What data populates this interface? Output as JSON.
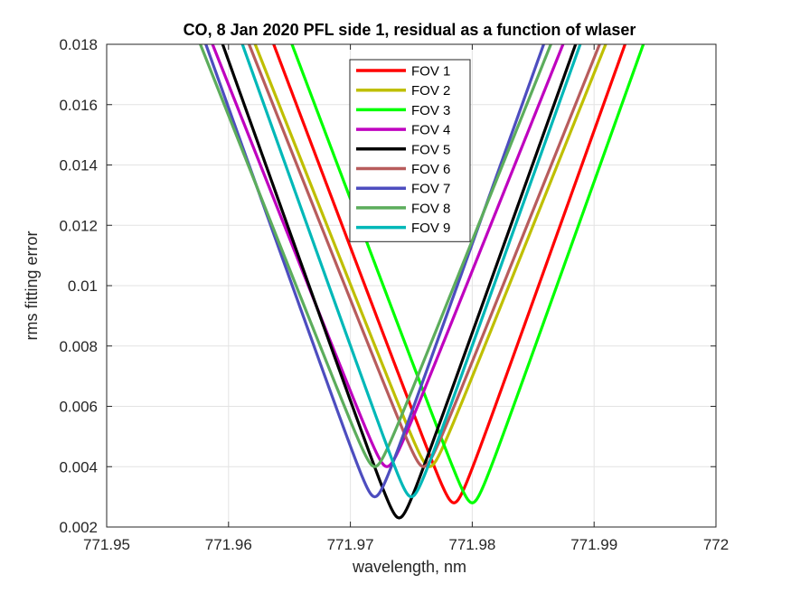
{
  "chart_data": {
    "type": "line",
    "title": "CO, 8 Jan 2020 PFL side 1, residual as a function of wlaser",
    "xlabel": "wavelength, nm",
    "ylabel": "rms fitting error",
    "xlim": [
      771.95,
      772.0
    ],
    "ylim": [
      0.002,
      0.018
    ],
    "xticks": [
      "771.95",
      "771.96",
      "771.97",
      "771.98",
      "771.99",
      "772"
    ],
    "yticks": [
      "0.002",
      "0.004",
      "0.006",
      "0.008",
      "0.01",
      "0.012",
      "0.014",
      "0.016",
      "0.018"
    ],
    "grid": true,
    "legend_location": "top-center",
    "series": [
      {
        "name": "FOV 1",
        "color": "#ff0000",
        "min_x": 771.9785,
        "min_y": 0.0028,
        "left_slope": 1.07,
        "right_slope": 1.13
      },
      {
        "name": "FOV 2",
        "color": "#bfbf00",
        "min_x": 771.9765,
        "min_y": 0.004,
        "left_slope": 1.02,
        "right_slope": 1.01
      },
      {
        "name": "FOV 3",
        "color": "#00ff00",
        "min_x": 771.98,
        "min_y": 0.0028,
        "left_slope": 1.07,
        "right_slope": 1.13
      },
      {
        "name": "FOV 4",
        "color": "#bf00bf",
        "min_x": 771.973,
        "min_y": 0.004,
        "left_slope": 1.02,
        "right_slope": 1.01
      },
      {
        "name": "FOV 5",
        "color": "#000000",
        "min_x": 771.974,
        "min_y": 0.0023,
        "left_slope": 1.13,
        "right_slope": 1.13
      },
      {
        "name": "FOV 6",
        "color": "#b85c5c",
        "min_x": 771.976,
        "min_y": 0.004,
        "left_slope": 1.02,
        "right_slope": 1.01
      },
      {
        "name": "FOV 7",
        "color": "#4d4dbf",
        "min_x": 771.972,
        "min_y": 0.003,
        "left_slope": 1.13,
        "right_slope": 1.13
      },
      {
        "name": "FOV 8",
        "color": "#5cad5c",
        "min_x": 771.972,
        "min_y": 0.004,
        "left_slope": 1.02,
        "right_slope": 1.01
      },
      {
        "name": "FOV 9",
        "color": "#00b8b8",
        "min_x": 771.975,
        "min_y": 0.003,
        "left_slope": 1.13,
        "right_slope": 1.13
      }
    ]
  }
}
